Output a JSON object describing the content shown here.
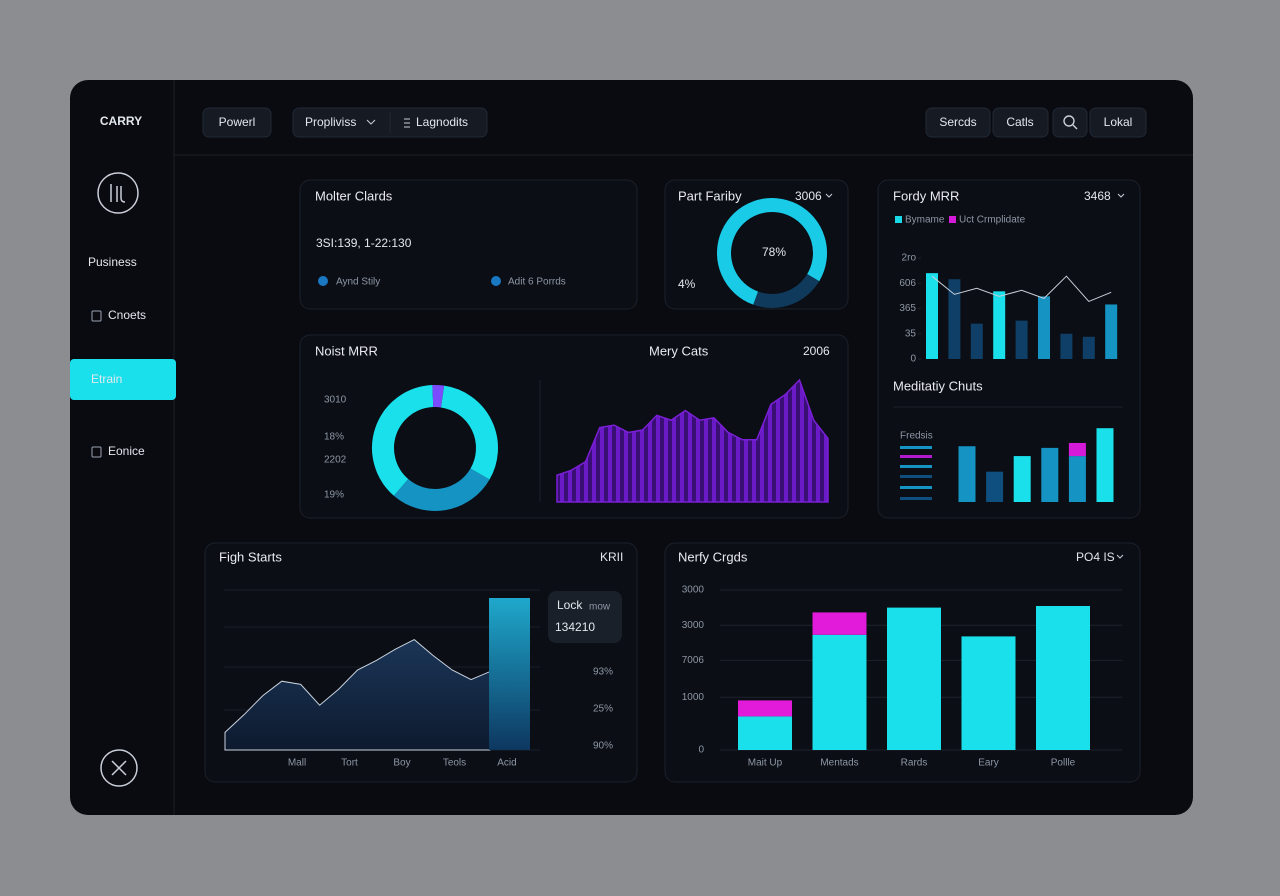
{
  "brand": "CARRY",
  "sidebar": {
    "items": [
      "Pusiness",
      "Cnoets",
      "Etrain",
      "Eonice"
    ],
    "active": 2
  },
  "topbar": {
    "left": [
      "Powerl",
      "Propliviss",
      "Lagnodits"
    ],
    "right": [
      "Sercds",
      "Catls",
      "Lokal"
    ]
  },
  "cards": {
    "summary": {
      "title": "Molter Clards",
      "value": "3SI:139, 1-22:130",
      "legend": [
        "Aynd Stily",
        "Adit 6 Porrds"
      ]
    },
    "gauge": {
      "title": "Part Fariby",
      "filter": "3006",
      "value": 78,
      "value_label": "78%",
      "note": "4%"
    },
    "fordy": {
      "title": "Fordy MRR",
      "filter": "3468",
      "legend": [
        {
          "name": "Bymame",
          "color": "#19d9e6"
        },
        {
          "name": "Uct Crmplidate",
          "color": "#d61ad9"
        }
      ],
      "ylim": [
        0,
        100
      ],
      "yticks": [
        {
          "value": 100,
          "label": "2ro"
        },
        {
          "value": 75,
          "label": "606"
        },
        {
          "value": 50,
          "label": "365"
        },
        {
          "value": 25,
          "label": "35"
        },
        0
      ],
      "values": [
        85,
        79,
        35,
        67,
        38,
        62,
        25,
        22,
        54
      ],
      "colors": [
        "#19e0ea",
        "#0f3f66",
        "#0f3f66",
        "#19e0ea",
        "#0f3f66",
        "#1594c4",
        "#0f3f66",
        "#0f3f66",
        "#1594c4"
      ],
      "line": [
        82,
        64,
        70,
        62,
        68,
        60,
        82,
        57,
        66
      ]
    },
    "medit": {
      "title": "Meditatiy Chuts",
      "label": "Fredsis",
      "ylim": [
        0,
        100
      ],
      "series": [
        {
          "colors": [
            "#1594c4",
            "#0f4f80",
            "#19e0ea",
            "#1594c4",
            "#1594c4",
            "#19e0ea"
          ],
          "values": [
            68,
            37,
            56,
            66,
            56,
            90
          ]
        },
        {
          "color": "#d61ad9",
          "values": [
            null,
            null,
            null,
            null,
            16,
            null
          ]
        }
      ]
    },
    "noist": {
      "title": "Noist MRR",
      "labels": [
        "3010",
        "18%",
        "2202",
        "19%"
      ],
      "donut": {
        "values": [
          28,
          38,
          3,
          31
        ],
        "colors": [
          "#1594c4",
          "#19e0ea",
          "#7b4cff",
          "#19e0ea"
        ]
      },
      "area_title": "Mery Cats",
      "area_filter": "2006",
      "area": {
        "ylim": [
          0,
          100
        ],
        "color": "#7a1fd6",
        "values": [
          22,
          26,
          33,
          61,
          63,
          57,
          59,
          71,
          67,
          75,
          67,
          69,
          57,
          51,
          51,
          80,
          88,
          100,
          67,
          52
        ]
      }
    },
    "figh": {
      "title": "Figh Starts",
      "filter": "KRII",
      "ylim": [
        0,
        100
      ],
      "area": [
        11,
        22,
        34,
        43,
        41,
        28,
        38,
        50,
        56,
        63,
        69,
        59,
        50,
        44,
        49
      ],
      "bar": 95,
      "tooltip": {
        "title": "Lock",
        "sub": "mow",
        "value": "134210"
      },
      "side_labels": [
        "93%",
        "25%",
        "90%"
      ],
      "categories": [
        "Mall",
        "Tort",
        "Boy",
        "Teols",
        "Acid"
      ]
    },
    "nerfy": {
      "title": "Nerfy Crgds",
      "filter": "PO4 IS",
      "ylim": [
        0,
        100
      ],
      "yticks": [
        {
          "value": 100,
          "label": "3000"
        },
        {
          "value": 78,
          "label": "3000"
        },
        {
          "value": 56,
          "label": "7006"
        },
        {
          "value": 33,
          "label": "1000"
        },
        0
      ],
      "categories": [
        "Mait Up",
        "Mentads",
        "Rards",
        "Eary",
        "Pollle"
      ],
      "series": [
        {
          "color": "#19e0ea",
          "values": [
            21,
            72,
            89,
            71,
            90
          ]
        },
        {
          "color": "#e21ad9",
          "values": [
            10,
            14,
            null,
            null,
            null
          ]
        }
      ]
    }
  }
}
